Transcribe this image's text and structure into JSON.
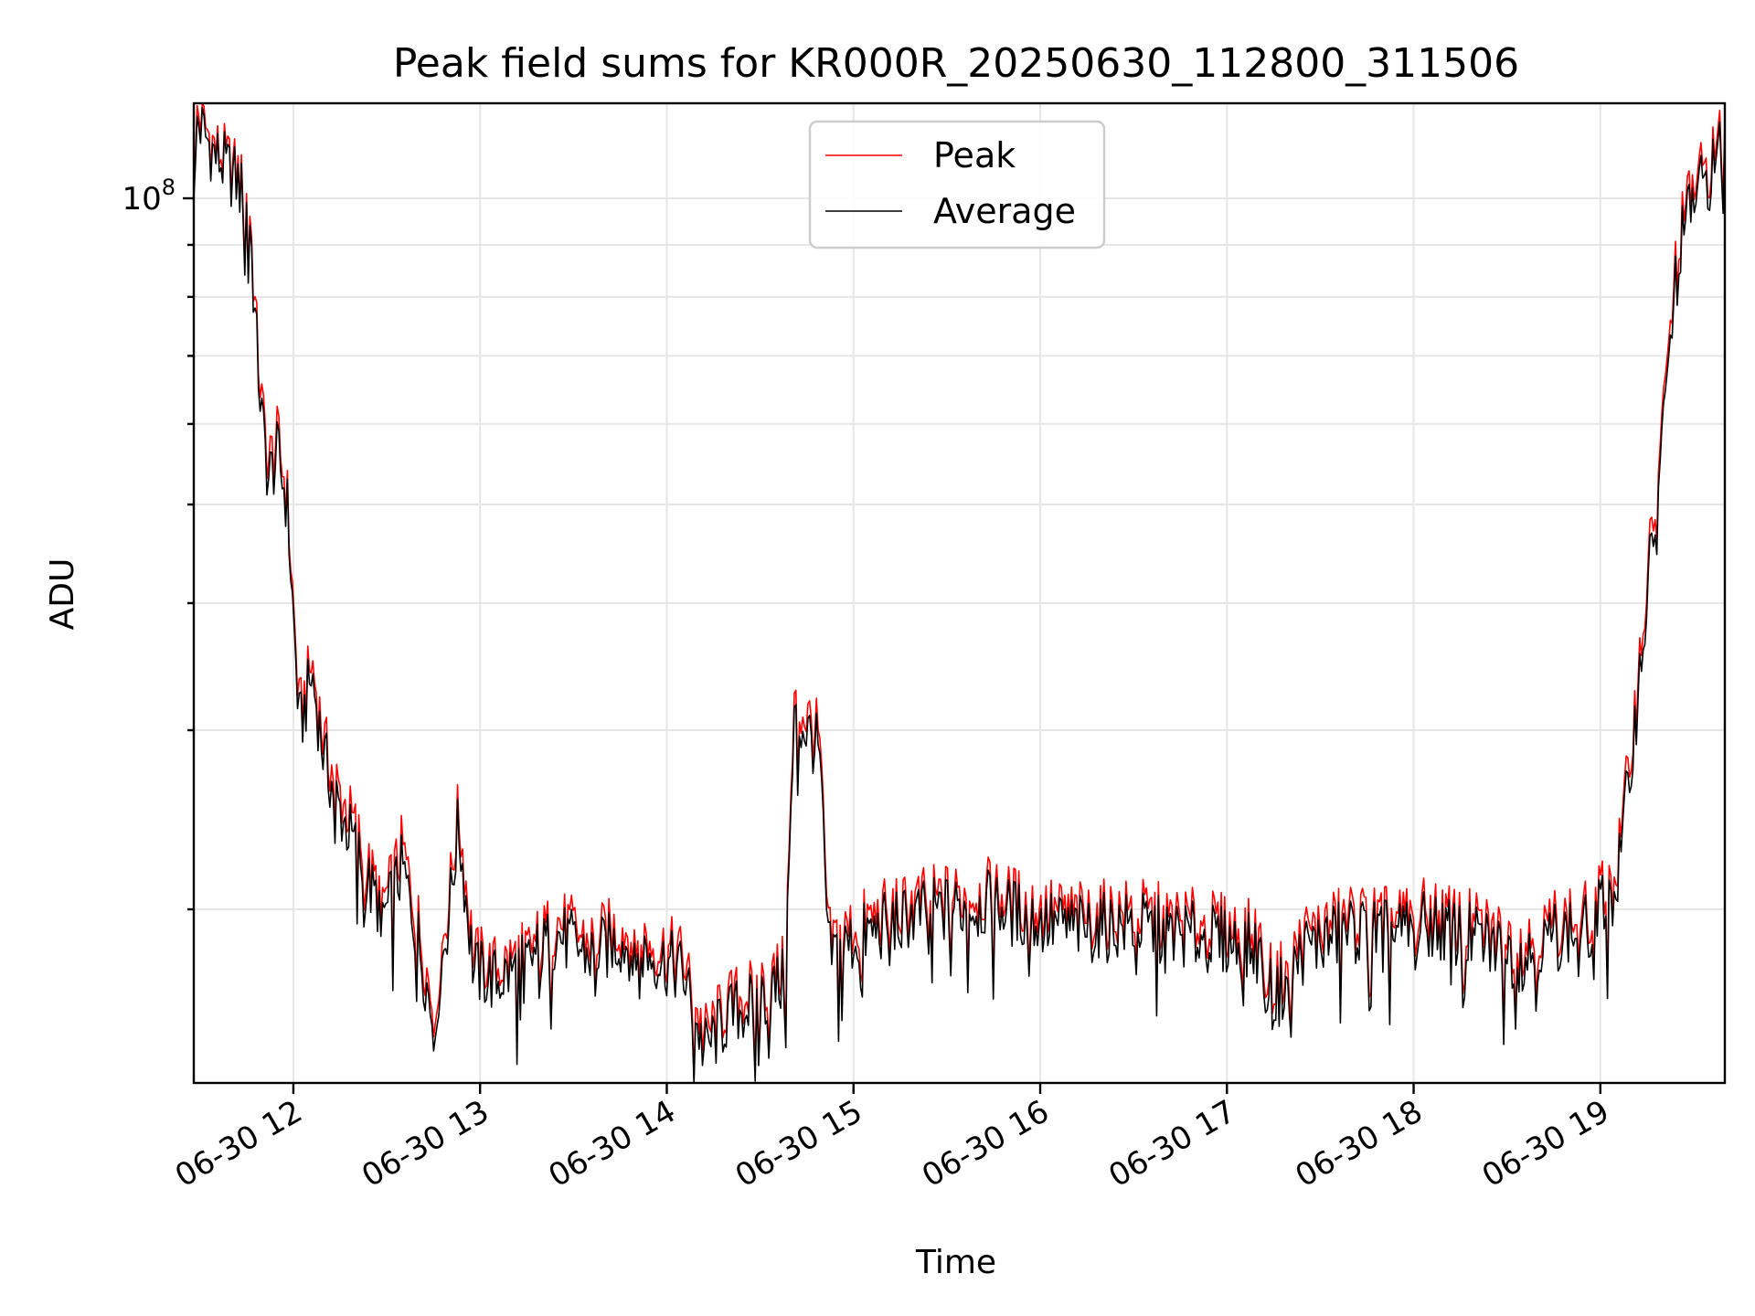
{
  "chart_data": {
    "type": "line",
    "title": "Peak field sums for KR000R_20250630_112800_311506",
    "xlabel": "Time",
    "ylabel": "ADU",
    "y_scale": "log",
    "ylim": [
      13500000,
      124000000
    ],
    "xlim": [
      "2025-06-30 11:28",
      "2025-06-30 19:40"
    ],
    "y_tick_labels": [
      {
        "value": 100000000,
        "base": "10",
        "exp": "8"
      }
    ],
    "x_ticks": [
      {
        "value": "2025-06-30 12:00",
        "label": "06-30 12"
      },
      {
        "value": "2025-06-30 13:00",
        "label": "06-30 13"
      },
      {
        "value": "2025-06-30 14:00",
        "label": "06-30 14"
      },
      {
        "value": "2025-06-30 15:00",
        "label": "06-30 15"
      },
      {
        "value": "2025-06-30 16:00",
        "label": "06-30 16"
      },
      {
        "value": "2025-06-30 17:00",
        "label": "06-30 17"
      },
      {
        "value": "2025-06-30 18:00",
        "label": "06-30 18"
      },
      {
        "value": "2025-06-30 19:00",
        "label": "06-30 19"
      }
    ],
    "grid": true,
    "legend_position": "top-center",
    "series": [
      {
        "name": "Peak",
        "color": "#ff0000",
        "points": [
          [
            "2025-06-30 11:28",
            124000000
          ],
          [
            "2025-06-30 11:35",
            112000000
          ],
          [
            "2025-06-30 11:42",
            106000000
          ],
          [
            "2025-06-30 11:46",
            98000000
          ],
          [
            "2025-06-30 11:48",
            75000000
          ],
          [
            "2025-06-30 11:50",
            62000000
          ],
          [
            "2025-06-30 11:52",
            55000000
          ],
          [
            "2025-06-30 11:55",
            58000000
          ],
          [
            "2025-06-30 11:58",
            51000000
          ],
          [
            "2025-06-30 12:02",
            31000000
          ],
          [
            "2025-06-30 12:06",
            35000000
          ],
          [
            "2025-06-30 12:10",
            29000000
          ],
          [
            "2025-06-30 12:15",
            26000000
          ],
          [
            "2025-06-30 12:20",
            24000000
          ],
          [
            "2025-06-30 12:25",
            21500000
          ],
          [
            "2025-06-30 12:30",
            20500000
          ],
          [
            "2025-06-30 12:35",
            23000000
          ],
          [
            "2025-06-30 12:40",
            19500000
          ],
          [
            "2025-06-30 12:45",
            16000000
          ],
          [
            "2025-06-30 12:50",
            20500000
          ],
          [
            "2025-06-30 12:53",
            25000000
          ],
          [
            "2025-06-30 12:58",
            18000000
          ],
          [
            "2025-06-30 13:05",
            17500000
          ],
          [
            "2025-06-30 13:15",
            18200000
          ],
          [
            "2025-06-30 13:25",
            19500000
          ],
          [
            "2025-06-30 13:35",
            18600000
          ],
          [
            "2025-06-30 13:45",
            19200000
          ],
          [
            "2025-06-30 13:55",
            18500000
          ],
          [
            "2025-06-30 14:05",
            18000000
          ],
          [
            "2025-06-30 14:12",
            15000000
          ],
          [
            "2025-06-30 14:20",
            16200000
          ],
          [
            "2025-06-30 14:30",
            16800000
          ],
          [
            "2025-06-30 14:38",
            17500000
          ],
          [
            "2025-06-30 14:41",
            31500000
          ],
          [
            "2025-06-30 14:45",
            31000000
          ],
          [
            "2025-06-30 14:49",
            29500000
          ],
          [
            "2025-06-30 14:52",
            18600000
          ],
          [
            "2025-06-30 15:00",
            19200000
          ],
          [
            "2025-06-30 15:15",
            20200000
          ],
          [
            "2025-06-30 15:30",
            20600000
          ],
          [
            "2025-06-30 15:45",
            20800000
          ],
          [
            "2025-06-30 16:00",
            20000000
          ],
          [
            "2025-06-30 16:15",
            19700000
          ],
          [
            "2025-06-30 16:30",
            19900000
          ],
          [
            "2025-06-30 16:45",
            19500000
          ],
          [
            "2025-06-30 17:00",
            19200000
          ],
          [
            "2025-06-30 17:10",
            18800000
          ],
          [
            "2025-06-30 17:15",
            16800000
          ],
          [
            "2025-06-30 17:25",
            18900000
          ],
          [
            "2025-06-30 17:40",
            19700000
          ],
          [
            "2025-06-30 17:55",
            19500000
          ],
          [
            "2025-06-30 18:05",
            19900000
          ],
          [
            "2025-06-30 18:20",
            19300000
          ],
          [
            "2025-06-30 18:35",
            18500000
          ],
          [
            "2025-06-30 18:45",
            19400000
          ],
          [
            "2025-06-30 18:55",
            19700000
          ],
          [
            "2025-06-30 19:05",
            21500000
          ],
          [
            "2025-06-30 19:10",
            29000000
          ],
          [
            "2025-06-30 19:15",
            42000000
          ],
          [
            "2025-06-30 19:20",
            60000000
          ],
          [
            "2025-06-30 19:25",
            92000000
          ],
          [
            "2025-06-30 19:30",
            103000000
          ],
          [
            "2025-06-30 19:35",
            108000000
          ],
          [
            "2025-06-30 19:40",
            117000000
          ]
        ]
      },
      {
        "name": "Average",
        "color": "#000000",
        "points": [
          [
            "2025-06-30 11:28",
            121000000
          ],
          [
            "2025-06-30 11:35",
            110000000
          ],
          [
            "2025-06-30 11:42",
            104000000
          ],
          [
            "2025-06-30 11:46",
            96000000
          ],
          [
            "2025-06-30 11:48",
            73000000
          ],
          [
            "2025-06-30 11:50",
            60000000
          ],
          [
            "2025-06-30 11:52",
            53000000
          ],
          [
            "2025-06-30 11:55",
            56000000
          ],
          [
            "2025-06-30 11:58",
            50000000
          ],
          [
            "2025-06-30 12:02",
            30000000
          ],
          [
            "2025-06-30 12:06",
            34000000
          ],
          [
            "2025-06-30 12:10",
            28000000
          ],
          [
            "2025-06-30 12:15",
            25000000
          ],
          [
            "2025-06-30 12:20",
            23000000
          ],
          [
            "2025-06-30 12:25",
            20800000
          ],
          [
            "2025-06-30 12:30",
            19800000
          ],
          [
            "2025-06-30 12:35",
            22000000
          ],
          [
            "2025-06-30 12:40",
            18800000
          ],
          [
            "2025-06-30 12:45",
            15500000
          ],
          [
            "2025-06-30 12:50",
            19800000
          ],
          [
            "2025-06-30 12:53",
            24200000
          ],
          [
            "2025-06-30 12:58",
            17400000
          ],
          [
            "2025-06-30 13:05",
            17000000
          ],
          [
            "2025-06-30 13:15",
            17700000
          ],
          [
            "2025-06-30 13:25",
            18900000
          ],
          [
            "2025-06-30 13:35",
            18000000
          ],
          [
            "2025-06-30 13:45",
            18600000
          ],
          [
            "2025-06-30 13:55",
            18000000
          ],
          [
            "2025-06-30 14:05",
            17400000
          ],
          [
            "2025-06-30 14:12",
            14500000
          ],
          [
            "2025-06-30 14:20",
            15700000
          ],
          [
            "2025-06-30 14:30",
            16300000
          ],
          [
            "2025-06-30 14:38",
            17000000
          ],
          [
            "2025-06-30 14:41",
            30500000
          ],
          [
            "2025-06-30 14:45",
            30000000
          ],
          [
            "2025-06-30 14:49",
            28500000
          ],
          [
            "2025-06-30 14:52",
            18000000
          ],
          [
            "2025-06-30 15:00",
            18600000
          ],
          [
            "2025-06-30 15:15",
            19600000
          ],
          [
            "2025-06-30 15:30",
            20000000
          ],
          [
            "2025-06-30 15:45",
            20200000
          ],
          [
            "2025-06-30 16:00",
            19400000
          ],
          [
            "2025-06-30 16:15",
            19100000
          ],
          [
            "2025-06-30 16:30",
            19300000
          ],
          [
            "2025-06-30 16:45",
            18900000
          ],
          [
            "2025-06-30 17:00",
            18600000
          ],
          [
            "2025-06-30 17:10",
            18200000
          ],
          [
            "2025-06-30 17:15",
            16200000
          ],
          [
            "2025-06-30 17:25",
            18300000
          ],
          [
            "2025-06-30 17:40",
            19100000
          ],
          [
            "2025-06-30 17:55",
            18900000
          ],
          [
            "2025-06-30 18:05",
            19300000
          ],
          [
            "2025-06-30 18:20",
            18700000
          ],
          [
            "2025-06-30 18:35",
            17900000
          ],
          [
            "2025-06-30 18:45",
            18800000
          ],
          [
            "2025-06-30 18:55",
            19100000
          ],
          [
            "2025-06-30 19:05",
            20800000
          ],
          [
            "2025-06-30 19:10",
            28000000
          ],
          [
            "2025-06-30 19:15",
            40500000
          ],
          [
            "2025-06-30 19:20",
            58000000
          ],
          [
            "2025-06-30 19:25",
            89000000
          ],
          [
            "2025-06-30 19:30",
            100000000
          ],
          [
            "2025-06-30 19:35",
            105000000
          ],
          [
            "2025-06-30 19:40",
            114000000
          ]
        ]
      }
    ]
  }
}
